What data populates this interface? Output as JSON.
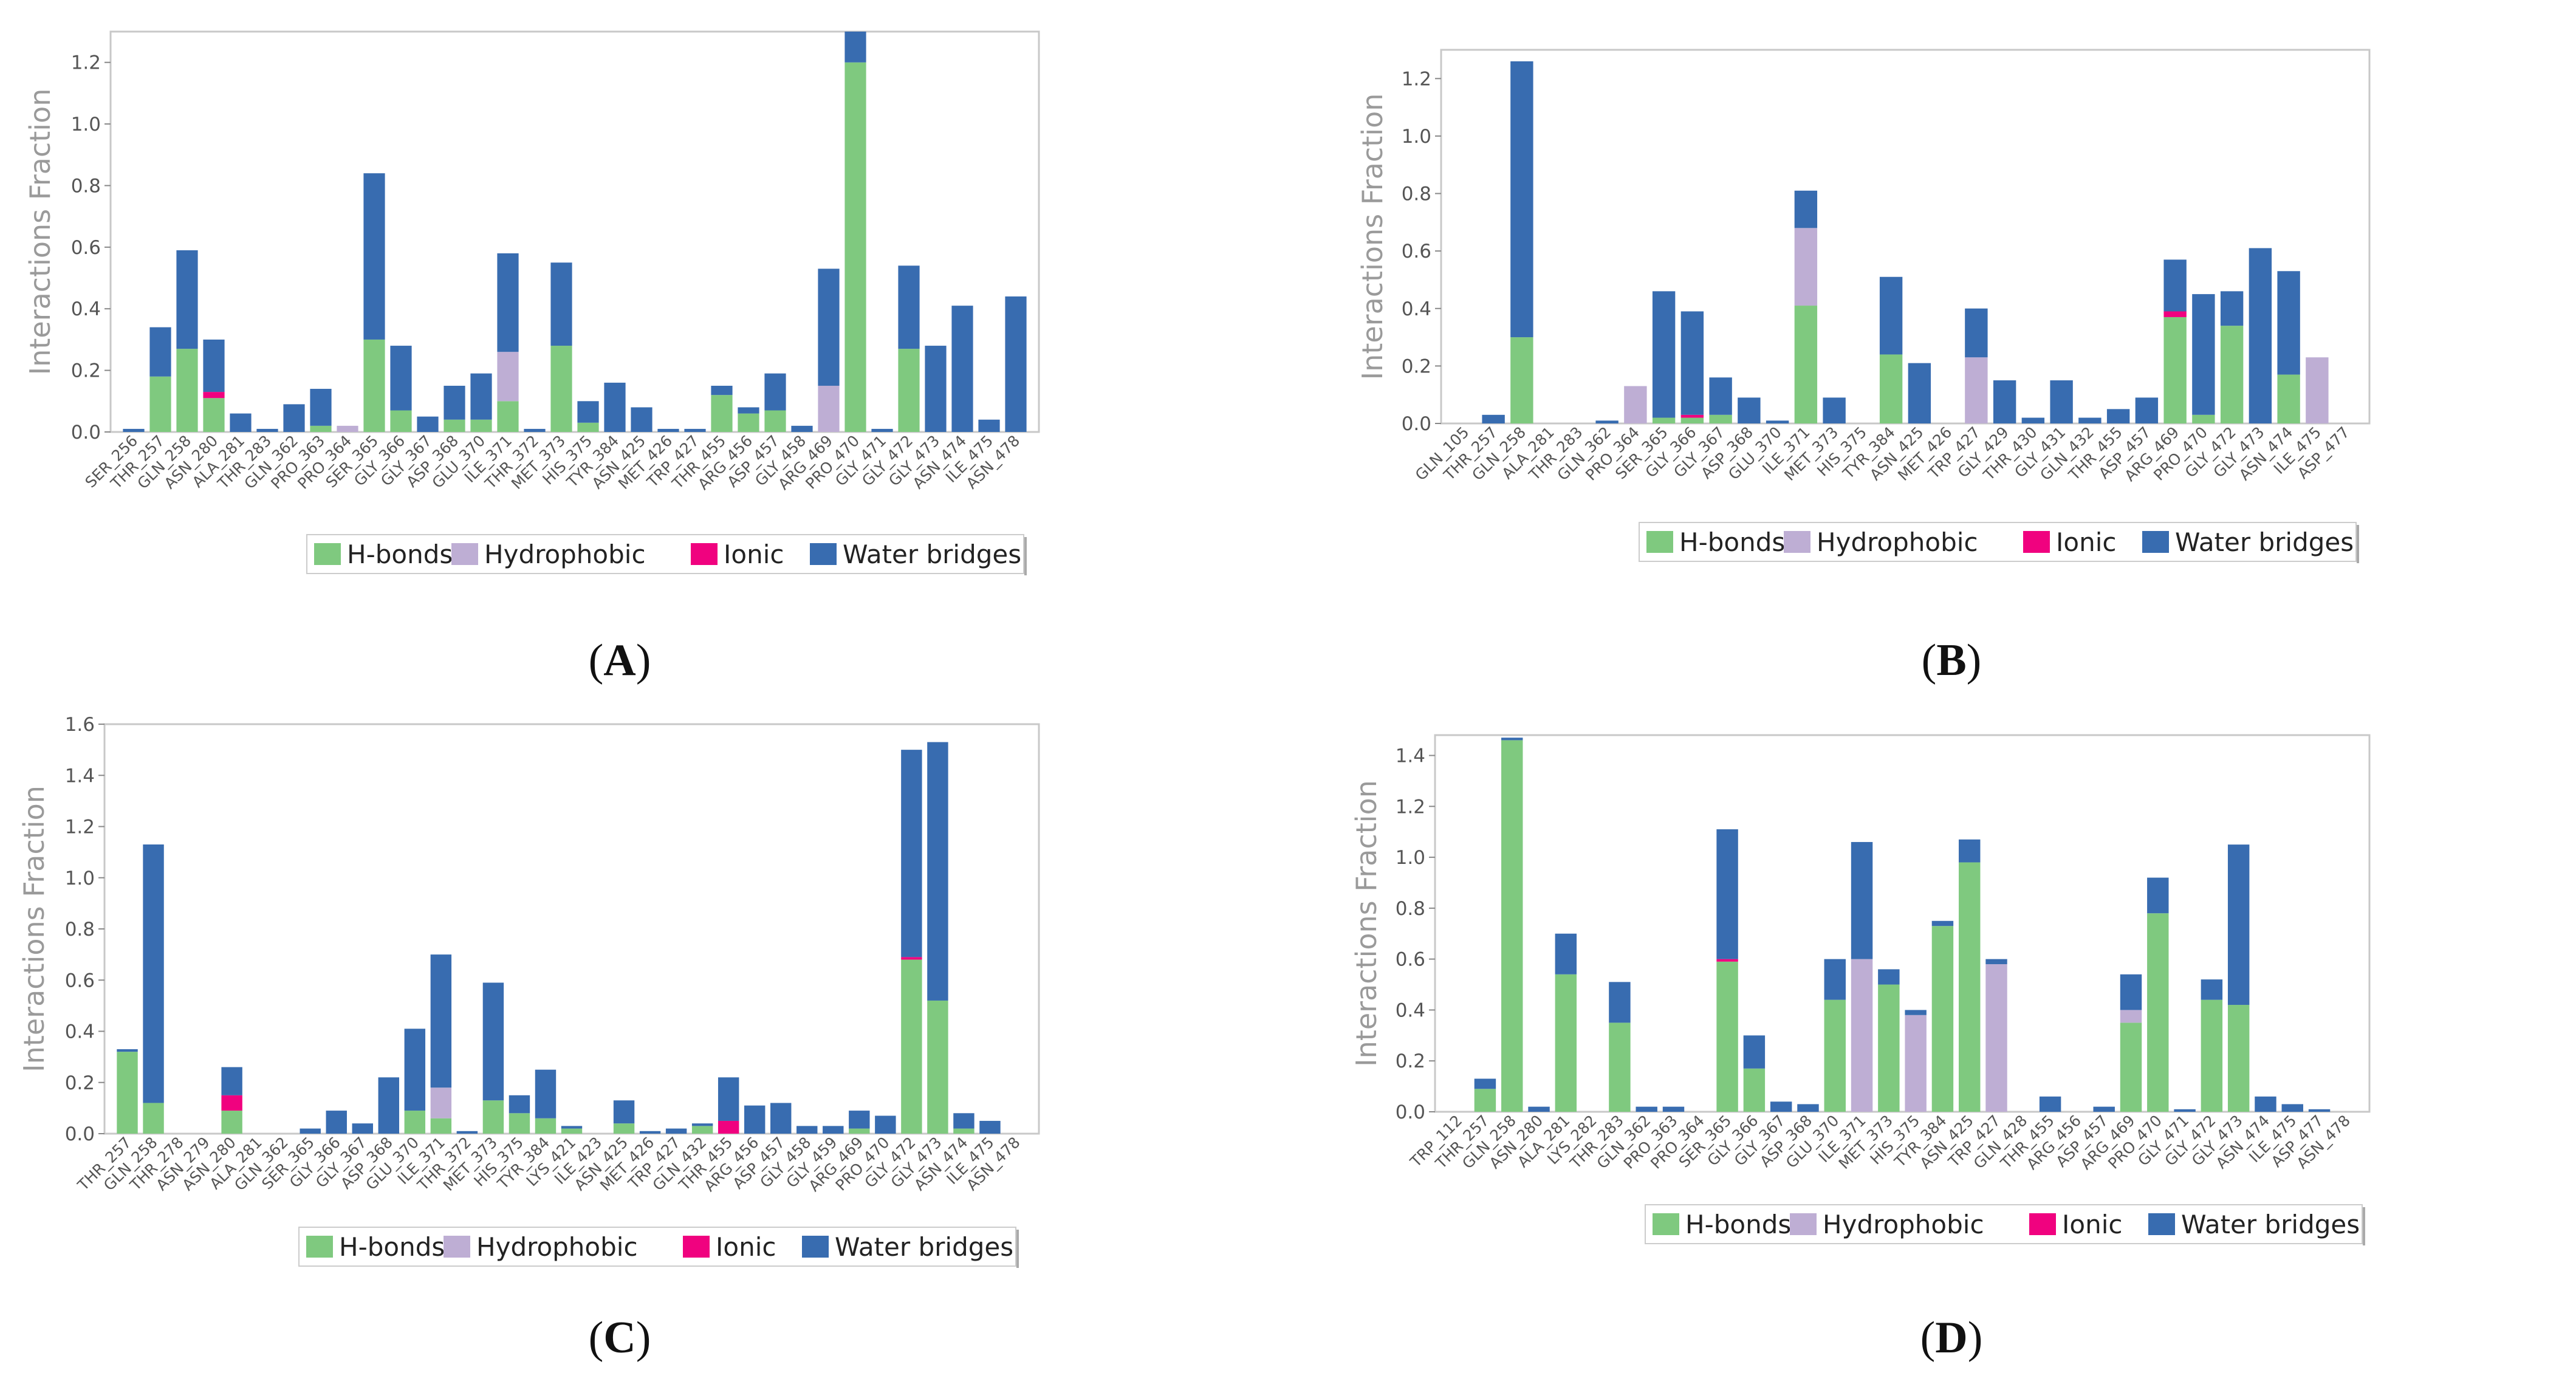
{
  "legend": [
    {
      "key": "hb",
      "label": "H-bonds",
      "color": "#7fc97f"
    },
    {
      "key": "hy",
      "label": "Hydrophobic",
      "color": "#beaed4"
    },
    {
      "key": "io",
      "label": "Ionic",
      "color": "#f0027f"
    },
    {
      "key": "wb",
      "label": "Water bridges",
      "color": "#386cb0"
    }
  ],
  "panel_labels": {
    "A": "A",
    "B": "B",
    "C": "C",
    "D": "D"
  },
  "chart_data": [
    {
      "id": "A",
      "type": "bar",
      "stacked": true,
      "ylabel": "Interactions Fraction",
      "ylim": [
        0,
        1.3
      ],
      "yticks": [
        "0.0",
        "0.2",
        "0.4",
        "0.6",
        "0.8",
        "1.0",
        "1.2"
      ],
      "categories": [
        "SER_256",
        "THR_257",
        "GLN_258",
        "ASN_280",
        "ALA_281",
        "THR_283",
        "GLN_362",
        "PRO_363",
        "PRO_364",
        "SER_365",
        "GLY_366",
        "GLY_367",
        "ASP_368",
        "GLU_370",
        "ILE_371",
        "THR_372",
        "MET_373",
        "HIS_375",
        "TYR_384",
        "ASN_425",
        "MET_426",
        "TRP_427",
        "THR_455",
        "ARG_456",
        "ASP_457",
        "GLY_458",
        "ARG_469",
        "PRO_470",
        "GLY_471",
        "GLY_472",
        "GLY_473",
        "ASN_474",
        "ILE_475",
        "ASN_478"
      ],
      "series": [
        {
          "name": "H-bonds",
          "values": [
            0,
            0.18,
            0.27,
            0.11,
            0,
            0,
            0,
            0.02,
            0,
            0.3,
            0.07,
            0,
            0.04,
            0.04,
            0.1,
            0,
            0.28,
            0.03,
            0,
            0,
            0,
            0,
            0.12,
            0.06,
            0.07,
            0,
            0,
            1.2,
            0,
            0.27,
            0,
            0,
            0,
            0
          ]
        },
        {
          "name": "Hydrophobic",
          "values": [
            0,
            0,
            0,
            0,
            0,
            0,
            0,
            0,
            0.02,
            0,
            0,
            0,
            0,
            0,
            0.16,
            0,
            0,
            0,
            0,
            0,
            0,
            0,
            0,
            0,
            0,
            0,
            0.15,
            0,
            0,
            0,
            0,
            0,
            0,
            0
          ]
        },
        {
          "name": "Ionic",
          "values": [
            0,
            0,
            0,
            0.02,
            0,
            0,
            0,
            0,
            0,
            0,
            0,
            0,
            0,
            0,
            0,
            0,
            0,
            0,
            0,
            0,
            0,
            0,
            0,
            0,
            0,
            0,
            0,
            0,
            0,
            0,
            0,
            0,
            0,
            0
          ]
        },
        {
          "name": "Water bridges",
          "values": [
            0.01,
            0.16,
            0.32,
            0.17,
            0.06,
            0.01,
            0.09,
            0.12,
            0,
            0.54,
            0.21,
            0.05,
            0.11,
            0.15,
            0.32,
            0.01,
            0.27,
            0.07,
            0.16,
            0.08,
            0.01,
            0.01,
            0.03,
            0.02,
            0.12,
            0.02,
            0.38,
            0.1,
            0.01,
            0.27,
            0.28,
            0.41,
            0.04,
            0.44
          ]
        }
      ]
    },
    {
      "id": "B",
      "type": "bar",
      "stacked": true,
      "ylabel": "Interactions Fraction",
      "ylim": [
        0,
        1.3
      ],
      "yticks": [
        "0.0",
        "0.2",
        "0.4",
        "0.6",
        "0.8",
        "1.0",
        "1.2"
      ],
      "categories": [
        "GLN_105",
        "THR_257",
        "GLN_258",
        "ALA_281",
        "THR_283",
        "GLN_362",
        "PRO_364",
        "SER_365",
        "GLY_366",
        "GLY_367",
        "ASP_368",
        "GLU_370",
        "ILE_371",
        "MET_373",
        "HIS_375",
        "TYR_384",
        "ASN_425",
        "MET_426",
        "TRP_427",
        "GLY_429",
        "THR_430",
        "GLY_431",
        "GLN_432",
        "THR_455",
        "ASP_457",
        "ARG_469",
        "PRO_470",
        "GLY_472",
        "GLY_473",
        "ASN_474",
        "ILE_475",
        "ASP_477"
      ],
      "series": [
        {
          "name": "H-bonds",
          "values": [
            0,
            0,
            0.3,
            0,
            0,
            0,
            0,
            0.02,
            0.02,
            0.03,
            0,
            0,
            0.41,
            0,
            0,
            0.24,
            0,
            0,
            0,
            0,
            0,
            0,
            0,
            0,
            0,
            0.37,
            0.03,
            0.34,
            0,
            0.17,
            0,
            0
          ]
        },
        {
          "name": "Hydrophobic",
          "values": [
            0,
            0,
            0,
            0,
            0,
            0,
            0.13,
            0,
            0,
            0,
            0,
            0,
            0.27,
            0,
            0,
            0,
            0,
            0,
            0.23,
            0,
            0,
            0,
            0,
            0,
            0,
            0,
            0,
            0,
            0,
            0,
            0.23,
            0
          ]
        },
        {
          "name": "Ionic",
          "values": [
            0,
            0,
            0,
            0,
            0,
            0,
            0,
            0,
            0.01,
            0,
            0,
            0,
            0,
            0,
            0,
            0,
            0,
            0,
            0,
            0,
            0,
            0,
            0,
            0,
            0,
            0.02,
            0,
            0,
            0,
            0,
            0,
            0
          ]
        },
        {
          "name": "Water bridges",
          "values": [
            0,
            0.03,
            0.96,
            0,
            0,
            0.01,
            0,
            0.44,
            0.36,
            0.13,
            0.09,
            0.01,
            0.13,
            0.09,
            0,
            0.27,
            0.21,
            0,
            0.17,
            0.15,
            0.02,
            0.15,
            0.02,
            0.05,
            0.09,
            0.18,
            0.42,
            0.12,
            0.61,
            0.36,
            0,
            0
          ]
        }
      ]
    },
    {
      "id": "C",
      "type": "bar",
      "stacked": true,
      "ylabel": "Interactions Fraction",
      "ylim": [
        0,
        1.6
      ],
      "yticks": [
        "0.0",
        "0.2",
        "0.4",
        "0.6",
        "0.8",
        "1.0",
        "1.2",
        "1.4",
        "1.6"
      ],
      "categories": [
        "THR_257",
        "GLN_258",
        "THR_278",
        "ASN_279",
        "ASN_280",
        "ALA_281",
        "GLN_362",
        "SER_365",
        "GLY_366",
        "GLY_367",
        "ASP_368",
        "GLU_370",
        "ILE_371",
        "THR_372",
        "MET_373",
        "HIS_375",
        "TYR_384",
        "LYS_421",
        "ILE_423",
        "ASN_425",
        "MET_426",
        "TRP_427",
        "GLN_432",
        "THR_455",
        "ARG_456",
        "ASP_457",
        "GLY_458",
        "GLY_459",
        "ARG_469",
        "PRO_470",
        "GLY_472",
        "GLY_473",
        "ASN_474",
        "ILE_475",
        "ASN_478"
      ],
      "series": [
        {
          "name": "H-bonds",
          "values": [
            0.32,
            0.12,
            0,
            0,
            0.09,
            0,
            0,
            0,
            0,
            0,
            0,
            0.09,
            0.06,
            0,
            0.13,
            0.08,
            0.06,
            0.02,
            0,
            0.04,
            0,
            0,
            0.03,
            0,
            0,
            0,
            0,
            0,
            0.02,
            0,
            0.68,
            0.52,
            0.02,
            0,
            0
          ]
        },
        {
          "name": "Hydrophobic",
          "values": [
            0,
            0,
            0,
            0,
            0,
            0,
            0,
            0,
            0,
            0,
            0,
            0,
            0.12,
            0,
            0,
            0,
            0,
            0,
            0,
            0,
            0,
            0,
            0,
            0,
            0,
            0,
            0,
            0,
            0,
            0,
            0,
            0,
            0,
            0,
            0
          ]
        },
        {
          "name": "Ionic",
          "values": [
            0,
            0,
            0,
            0,
            0.06,
            0,
            0,
            0,
            0,
            0,
            0,
            0,
            0,
            0,
            0,
            0,
            0,
            0,
            0,
            0,
            0,
            0,
            0,
            0.05,
            0,
            0,
            0,
            0,
            0,
            0,
            0.01,
            0,
            0,
            0,
            0
          ]
        },
        {
          "name": "Water bridges",
          "values": [
            0.01,
            1.01,
            0,
            0,
            0.11,
            0,
            0,
            0.02,
            0.09,
            0.04,
            0.22,
            0.32,
            0.52,
            0.01,
            0.46,
            0.07,
            0.19,
            0.01,
            0,
            0.09,
            0.01,
            0.02,
            0.01,
            0.17,
            0.11,
            0.12,
            0.03,
            0.03,
            0.07,
            0.07,
            0.81,
            1.01,
            0.06,
            0.05,
            0
          ]
        }
      ]
    },
    {
      "id": "D",
      "type": "bar",
      "stacked": true,
      "ylabel": "Interactions Fraction",
      "ylim": [
        0,
        1.48
      ],
      "yticks": [
        "0.0",
        "0.2",
        "0.4",
        "0.6",
        "0.8",
        "1.0",
        "1.2",
        "1.4"
      ],
      "categories": [
        "TRP_112",
        "THR_257",
        "GLN_258",
        "ASN_280",
        "ALA_281",
        "LYS_282",
        "THR_283",
        "GLN_362",
        "PRO_363",
        "PRO_364",
        "SER_365",
        "GLY_366",
        "GLY_367",
        "ASP_368",
        "GLU_370",
        "ILE_371",
        "MET_373",
        "HIS_375",
        "TYR_384",
        "ASN_425",
        "TRP_427",
        "GLN_428",
        "THR_455",
        "ARG_456",
        "ASP_457",
        "ARG_469",
        "PRO_470",
        "GLY_471",
        "GLY_472",
        "GLY_473",
        "ASN_474",
        "ILE_475",
        "ASP_477",
        "ASN_478"
      ],
      "series": [
        {
          "name": "H-bonds",
          "values": [
            0,
            0.09,
            1.46,
            0,
            0.54,
            0,
            0.35,
            0,
            0,
            0,
            0.59,
            0.17,
            0,
            0,
            0.44,
            0,
            0.5,
            0,
            0.73,
            0.98,
            0,
            0,
            0,
            0,
            0,
            0.35,
            0.78,
            0,
            0.44,
            0.42,
            0,
            0,
            0,
            0
          ]
        },
        {
          "name": "Hydrophobic",
          "values": [
            0,
            0,
            0,
            0,
            0,
            0,
            0,
            0,
            0,
            0,
            0,
            0,
            0,
            0,
            0,
            0.6,
            0,
            0.38,
            0,
            0,
            0.58,
            0,
            0,
            0,
            0,
            0.05,
            0,
            0,
            0,
            0,
            0,
            0,
            0,
            0
          ]
        },
        {
          "name": "Ionic",
          "values": [
            0,
            0,
            0,
            0,
            0,
            0,
            0,
            0,
            0,
            0,
            0.01,
            0,
            0,
            0,
            0,
            0,
            0,
            0,
            0,
            0,
            0,
            0,
            0,
            0,
            0,
            0,
            0,
            0,
            0,
            0,
            0,
            0,
            0,
            0
          ]
        },
        {
          "name": "Water bridges",
          "values": [
            0,
            0.04,
            0.01,
            0.02,
            0.16,
            0,
            0.16,
            0.02,
            0.02,
            0,
            0.51,
            0.13,
            0.04,
            0.03,
            0.16,
            0.46,
            0.06,
            0.02,
            0.02,
            0.09,
            0.02,
            0,
            0.06,
            0,
            0.02,
            0.14,
            0.14,
            0.01,
            0.08,
            0.63,
            0.06,
            0.03,
            0.01,
            0
          ]
        }
      ]
    }
  ]
}
